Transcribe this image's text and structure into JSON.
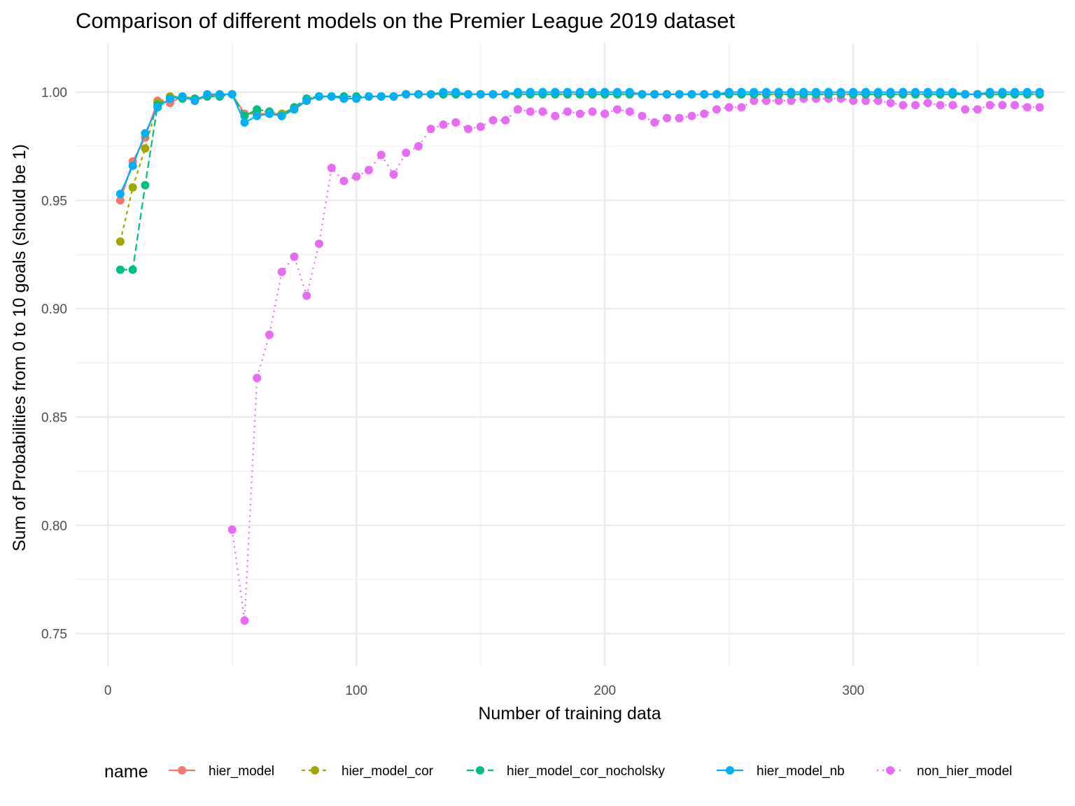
{
  "chart_data": {
    "type": "line",
    "title": "Comparison of different models on the Premier League 2019 dataset",
    "xlabel": "Number of training data",
    "ylabel": "Sum of Probabilities from 0 to 10 goals (should be 1)",
    "xlim": [
      -13,
      385
    ],
    "ylim": [
      0.735,
      1.0225
    ],
    "x_ticks": [
      0,
      100,
      200,
      300
    ],
    "x_tick_labels": [
      "0",
      "100",
      "200",
      "300"
    ],
    "y_ticks": [
      0.75,
      0.8,
      0.85,
      0.9,
      0.95,
      1.0
    ],
    "y_tick_labels": [
      "0.75",
      "0.80",
      "0.85",
      "0.90",
      "0.95",
      "1.00"
    ],
    "grid": true,
    "legend_title": "name",
    "legend_position": "bottom",
    "series": [
      {
        "name": "hier_model",
        "color": "#F8766D",
        "line": "solid",
        "x": [
          5,
          10,
          15,
          20,
          25,
          30,
          35,
          40,
          45,
          50,
          55,
          60,
          65,
          70,
          75,
          80,
          85,
          90,
          95,
          100,
          105,
          110,
          115,
          120,
          125,
          130,
          135,
          140,
          145,
          150,
          155,
          160,
          165,
          170,
          175,
          180,
          185,
          190,
          195,
          200,
          205,
          210,
          215,
          220,
          225,
          230,
          235,
          240,
          245,
          250,
          255,
          260,
          265,
          270,
          275,
          280,
          285,
          290,
          295,
          300,
          305,
          310,
          315,
          320,
          325,
          330,
          335,
          340,
          345,
          350,
          355,
          360,
          365,
          370,
          375
        ],
        "y": [
          0.95,
          0.968,
          0.979,
          0.996,
          0.995,
          0.998,
          0.996,
          0.998,
          0.999,
          0.999,
          0.99,
          0.99,
          0.99,
          0.99,
          0.993,
          0.996,
          0.998,
          0.998,
          0.997,
          0.997,
          0.998,
          0.998,
          0.998,
          0.999,
          0.999,
          0.999,
          0.999,
          0.999,
          0.999,
          0.999,
          0.999,
          0.999,
          0.999,
          0.999,
          0.999,
          0.999,
          0.999,
          0.999,
          0.999,
          0.999,
          0.999,
          0.999,
          0.999,
          0.999,
          0.999,
          0.999,
          0.999,
          0.999,
          0.999,
          0.999,
          0.999,
          0.999,
          0.999,
          0.999,
          0.999,
          0.999,
          0.999,
          0.999,
          0.999,
          0.999,
          0.999,
          0.999,
          0.999,
          0.999,
          0.999,
          0.999,
          0.999,
          0.999,
          0.999,
          0.999,
          0.999,
          0.999,
          0.999,
          0.999,
          0.999
        ]
      },
      {
        "name": "hier_model_cor",
        "color": "#A3A500",
        "line": "dashed",
        "x": [
          5,
          10,
          15,
          20,
          25,
          30,
          35,
          40,
          45,
          50,
          55,
          60,
          65,
          70,
          75,
          80,
          85,
          90,
          95,
          100,
          105,
          110,
          115,
          120,
          125,
          130,
          135,
          140,
          145,
          150,
          155,
          160,
          165,
          170,
          175,
          180,
          185,
          190,
          195,
          200,
          205,
          210,
          215,
          220,
          225,
          230,
          235,
          240,
          245,
          250,
          255,
          260,
          265,
          270,
          275,
          280,
          285,
          290,
          295,
          300,
          305,
          310,
          315,
          320,
          325,
          330,
          335,
          340,
          345,
          350,
          355,
          360,
          365,
          370,
          375
        ],
        "y": [
          0.931,
          0.956,
          0.974,
          0.995,
          0.998,
          0.998,
          0.997,
          0.998,
          0.998,
          0.999,
          0.989,
          0.991,
          0.991,
          0.99,
          0.993,
          0.997,
          0.998,
          0.998,
          0.997,
          0.997,
          0.998,
          0.998,
          0.998,
          0.999,
          0.999,
          0.999,
          0.999,
          0.999,
          0.999,
          0.999,
          0.999,
          0.999,
          0.999,
          0.999,
          0.999,
          0.999,
          0.999,
          0.999,
          0.999,
          0.999,
          0.999,
          0.999,
          0.999,
          0.999,
          0.999,
          0.999,
          0.999,
          0.999,
          0.999,
          0.999,
          0.999,
          0.999,
          0.999,
          0.999,
          0.999,
          0.999,
          0.999,
          0.999,
          0.999,
          0.999,
          0.999,
          0.999,
          0.999,
          0.999,
          0.999,
          0.999,
          0.999,
          0.999,
          0.999,
          0.999,
          0.999,
          0.999,
          0.999,
          0.999,
          0.999
        ]
      },
      {
        "name": "hier_model_cor_nocholsky",
        "color": "#00BF7D",
        "line": "longdash",
        "x": [
          5,
          10,
          15,
          20,
          25,
          30,
          35,
          40,
          45,
          50,
          55,
          60,
          65,
          70,
          75,
          80,
          85,
          90,
          95,
          100,
          105,
          110,
          115,
          120,
          125,
          130,
          135,
          140,
          145,
          150,
          155,
          160,
          165,
          170,
          175,
          180,
          185,
          190,
          195,
          200,
          205,
          210,
          215,
          220,
          225,
          230,
          235,
          240,
          245,
          250,
          255,
          260,
          265,
          270,
          275,
          280,
          285,
          290,
          295,
          300,
          305,
          310,
          315,
          320,
          325,
          330,
          335,
          340,
          345,
          350,
          355,
          360,
          365,
          370,
          375
        ],
        "y": [
          0.918,
          0.918,
          0.957,
          0.994,
          0.997,
          0.997,
          0.997,
          0.998,
          0.998,
          0.999,
          0.989,
          0.992,
          0.991,
          0.989,
          0.993,
          0.997,
          0.998,
          0.998,
          0.998,
          0.998,
          0.998,
          0.998,
          0.998,
          0.999,
          0.999,
          0.999,
          0.999,
          0.999,
          0.999,
          0.999,
          0.999,
          0.999,
          0.999,
          0.999,
          0.999,
          0.999,
          0.999,
          0.999,
          0.999,
          0.999,
          0.999,
          0.999,
          0.999,
          0.999,
          0.999,
          0.999,
          0.999,
          0.999,
          0.999,
          0.999,
          0.999,
          0.999,
          0.999,
          0.999,
          0.999,
          0.999,
          0.999,
          0.999,
          0.999,
          0.999,
          0.999,
          0.999,
          0.999,
          0.999,
          0.999,
          0.999,
          0.999,
          0.999,
          0.999,
          0.999,
          0.999,
          0.999,
          0.999,
          0.999,
          0.999
        ]
      },
      {
        "name": "hier_model_nb",
        "color": "#00B0F6",
        "line": "solid",
        "x": [
          5,
          10,
          15,
          20,
          25,
          30,
          35,
          40,
          45,
          50,
          55,
          60,
          65,
          70,
          75,
          80,
          85,
          90,
          95,
          100,
          105,
          110,
          115,
          120,
          125,
          130,
          135,
          140,
          145,
          150,
          155,
          160,
          165,
          170,
          175,
          180,
          185,
          190,
          195,
          200,
          205,
          210,
          215,
          220,
          225,
          230,
          235,
          240,
          245,
          250,
          255,
          260,
          265,
          270,
          275,
          280,
          285,
          290,
          295,
          300,
          305,
          310,
          315,
          320,
          325,
          330,
          335,
          340,
          345,
          350,
          355,
          360,
          365,
          370,
          375
        ],
        "y": [
          0.953,
          0.966,
          0.981,
          0.993,
          0.997,
          0.998,
          0.996,
          0.999,
          0.999,
          0.999,
          0.986,
          0.989,
          0.99,
          0.989,
          0.992,
          0.996,
          0.998,
          0.998,
          0.997,
          0.997,
          0.998,
          0.998,
          0.998,
          0.999,
          0.999,
          0.999,
          1.0,
          1.0,
          0.999,
          0.999,
          0.999,
          0.999,
          1.0,
          1.0,
          1.0,
          1.0,
          1.0,
          1.0,
          1.0,
          1.0,
          1.0,
          1.0,
          0.999,
          0.999,
          0.999,
          0.999,
          0.999,
          0.999,
          0.999,
          1.0,
          1.0,
          1.0,
          1.0,
          1.0,
          1.0,
          1.0,
          1.0,
          1.0,
          1.0,
          1.0,
          1.0,
          1.0,
          1.0,
          1.0,
          1.0,
          1.0,
          1.0,
          1.0,
          0.999,
          0.999,
          1.0,
          1.0,
          1.0,
          1.0,
          1.0
        ]
      },
      {
        "name": "non_hier_model",
        "color": "#E76BF3",
        "line": "dotted",
        "x": [
          50,
          55,
          60,
          65,
          70,
          75,
          80,
          85,
          90,
          95,
          100,
          105,
          110,
          115,
          120,
          125,
          130,
          135,
          140,
          145,
          150,
          155,
          160,
          165,
          170,
          175,
          180,
          185,
          190,
          195,
          200,
          205,
          210,
          215,
          220,
          225,
          230,
          235,
          240,
          245,
          250,
          255,
          260,
          265,
          270,
          275,
          280,
          285,
          290,
          295,
          300,
          305,
          310,
          315,
          320,
          325,
          330,
          335,
          340,
          345,
          350,
          355,
          360,
          365,
          370,
          375
        ],
        "y": [
          0.798,
          0.756,
          0.868,
          0.888,
          0.917,
          0.924,
          0.906,
          0.93,
          0.965,
          0.959,
          0.961,
          0.964,
          0.971,
          0.962,
          0.972,
          0.975,
          0.983,
          0.985,
          0.986,
          0.983,
          0.984,
          0.987,
          0.987,
          0.992,
          0.991,
          0.991,
          0.989,
          0.991,
          0.99,
          0.991,
          0.99,
          0.992,
          0.991,
          0.989,
          0.986,
          0.988,
          0.988,
          0.989,
          0.99,
          0.992,
          0.993,
          0.993,
          0.996,
          0.996,
          0.996,
          0.996,
          0.997,
          0.997,
          0.997,
          0.997,
          0.996,
          0.996,
          0.996,
          0.995,
          0.994,
          0.994,
          0.995,
          0.994,
          0.994,
          0.992,
          0.992,
          0.994,
          0.994,
          0.994,
          0.993,
          0.993
        ]
      }
    ]
  }
}
